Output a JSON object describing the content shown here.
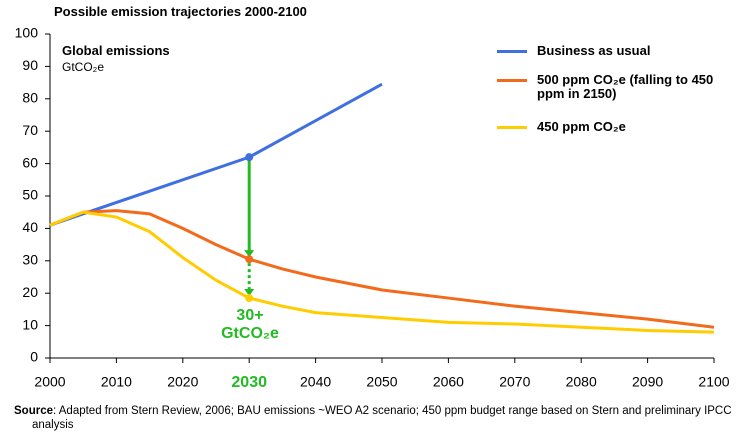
{
  "chart_data": {
    "type": "line",
    "title": "Possible emission trajectories 2000-2100",
    "panel_title": "Global emissions",
    "panel_unit": "GtCO₂e",
    "xlim": [
      2000,
      2100
    ],
    "xticks": [
      2000,
      2010,
      2020,
      2030,
      2040,
      2050,
      2060,
      2070,
      2080,
      2090,
      2100
    ],
    "highlight_xtick": 2030,
    "highlight_color": "#22bb22",
    "ylim": [
      0,
      100
    ],
    "yticks": [
      0,
      10,
      20,
      30,
      40,
      50,
      60,
      70,
      80,
      90,
      100
    ],
    "legend": "upper right",
    "series": [
      {
        "name": "Business as usual",
        "color": "#3f6fe0",
        "x": [
          2000,
          2030,
          2050
        ],
        "values": [
          41,
          62,
          84.5
        ]
      },
      {
        "name": "500 ppm CO₂e (falling to 450 ppm in 2150)",
        "color": "#f26a1b",
        "x": [
          2000,
          2005,
          2010,
          2015,
          2020,
          2025,
          2030,
          2035,
          2040,
          2050,
          2060,
          2070,
          2080,
          2090,
          2100
        ],
        "values": [
          41,
          45,
          45.5,
          44.5,
          40,
          35,
          30.5,
          27.5,
          25,
          21,
          18.5,
          16,
          14,
          12,
          9.5
        ]
      },
      {
        "name": "450 ppm CO₂e",
        "color": "#ffcc00",
        "x": [
          2000,
          2005,
          2010,
          2015,
          2020,
          2025,
          2030,
          2035,
          2040,
          2050,
          2060,
          2070,
          2080,
          2090,
          2100
        ],
        "values": [
          41,
          45,
          43.5,
          39,
          31,
          24,
          18.5,
          16,
          14,
          12.5,
          11,
          10.5,
          9.5,
          8.5,
          8
        ]
      }
    ],
    "annotation": "30+ GtCO₂e",
    "source_label": "Source",
    "source_text": ": Adapted from Stern Review, 2006; BAU emissions ~WEO A2 scenario; 450 ppm budget range based on Stern and preliminary IPCC analysis"
  }
}
